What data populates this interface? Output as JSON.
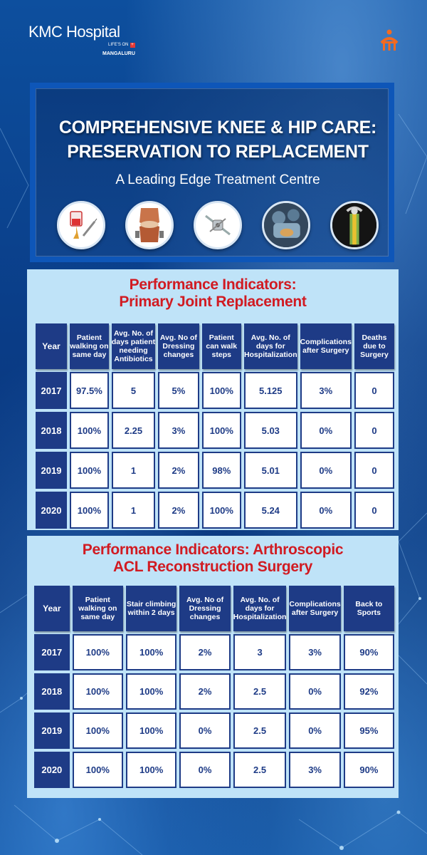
{
  "header": {
    "logo_text": "KMC Hospital",
    "tagline": "LIFE'S ON",
    "tagline_plus": "+",
    "city": "MANGALURU"
  },
  "hero": {
    "title_line1": "COMPREHENSIVE KNEE & HIP CARE:",
    "title_line2": "PRESERVATION TO REPLACEMENT",
    "subtitle": "A Leading Edge Treatment Centre",
    "icons": [
      "blood-bag-syringe-icon",
      "knee-joint-icon",
      "knee-implant-icon",
      "surgery-scene-icon",
      "hip-implant-xray-icon"
    ]
  },
  "table1": {
    "title_line1": "Performance Indicators:",
    "title_line2": "Primary Joint Replacement",
    "headers": [
      "Year",
      "Patient walking on same day",
      "Avg. No. of days patient needing Antibiotics",
      "Avg. No of Dressing changes",
      "Patient can walk steps",
      "Avg. No. of days for Hospitalization",
      "Complications after Surgery",
      "Deaths due to Surgery"
    ],
    "rows": [
      [
        "2017",
        "97.5%",
        "5",
        "5%",
        "100%",
        "5.125",
        "3%",
        "0"
      ],
      [
        "2018",
        "100%",
        "2.25",
        "3%",
        "100%",
        "5.03",
        "0%",
        "0"
      ],
      [
        "2019",
        "100%",
        "1",
        "2%",
        "98%",
        "5.01",
        "0%",
        "0"
      ],
      [
        "2020",
        "100%",
        "1",
        "2%",
        "100%",
        "5.24",
        "0%",
        "0"
      ]
    ]
  },
  "table2": {
    "title_line1": "Performance Indicators: Arthroscopic",
    "title_line2": "ACL Reconstruction Surgery",
    "headers": [
      "Year",
      "Patient walking on same day",
      "Stair climbing within 2 days",
      "Avg. No of Dressing changes",
      "Avg. No. of days for Hospitalization",
      "Complications after Surgery",
      "Back to Sports"
    ],
    "rows": [
      [
        "2017",
        "100%",
        "100%",
        "2%",
        "3",
        "3%",
        "90%"
      ],
      [
        "2018",
        "100%",
        "100%",
        "2%",
        "2.5",
        "0%",
        "92%"
      ],
      [
        "2019",
        "100%",
        "100%",
        "0%",
        "2.5",
        "0%",
        "95%"
      ],
      [
        "2020",
        "100%",
        "100%",
        "0%",
        "2.5",
        "3%",
        "90%"
      ]
    ]
  },
  "colors": {
    "background": "#0a3f8c",
    "header_cell": "#1e3b86",
    "panel": "#bfe3f8",
    "title_red": "#d11b22"
  }
}
